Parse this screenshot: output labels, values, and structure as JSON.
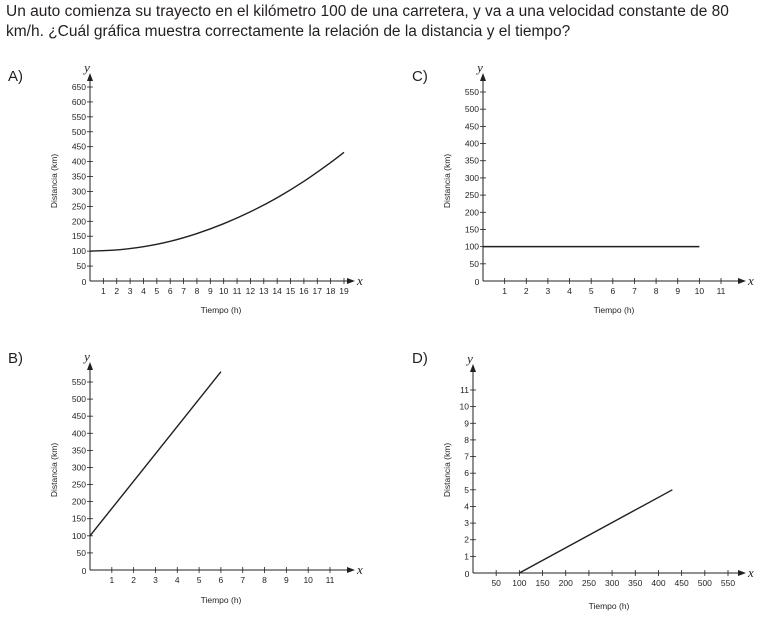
{
  "question": "Un auto comienza su trayecto en el kilómetro 100 de una carretera, y va a una velocidad constante de 80 km/h. ¿Cuál gráfica muestra correctamente la relación de la distancia y el tiempo?",
  "chart_data": [
    {
      "label": "A)",
      "type": "line",
      "xlabel": "Tiempo (h)",
      "ylabel": "Distancia (km)",
      "x_var": "x",
      "y_var": "y",
      "origin_label": "0",
      "xlim": [
        0,
        19
      ],
      "ylim": [
        0,
        650
      ],
      "x_ticks": [
        1,
        2,
        3,
        4,
        5,
        6,
        7,
        8,
        9,
        10,
        11,
        12,
        13,
        14,
        15,
        16,
        17,
        18,
        19
      ],
      "y_ticks": [
        50,
        100,
        150,
        200,
        250,
        300,
        350,
        400,
        450,
        500,
        550,
        600,
        650
      ],
      "series": [
        {
          "x": [
            0,
            2,
            4,
            6,
            8,
            10,
            12,
            14,
            16,
            18,
            19
          ],
          "y": [
            100,
            104,
            115,
            133,
            159,
            192,
            232,
            279,
            334,
            397,
            431
          ]
        }
      ]
    },
    {
      "label": "B)",
      "type": "line",
      "xlabel": "Tiempo (h)",
      "ylabel": "Distancia (km)",
      "x_var": "x",
      "y_var": "y",
      "origin_label": "0",
      "xlim": [
        0,
        11
      ],
      "ylim": [
        0,
        550
      ],
      "x_ticks": [
        1,
        2,
        3,
        4,
        5,
        6,
        7,
        8,
        9,
        10,
        11
      ],
      "y_ticks": [
        50,
        100,
        150,
        200,
        250,
        300,
        350,
        400,
        450,
        500,
        550
      ],
      "series": [
        {
          "x": [
            0,
            6
          ],
          "y": [
            100,
            580
          ]
        }
      ]
    },
    {
      "label": "C)",
      "type": "line",
      "xlabel": "Tiempo (h)",
      "ylabel": "Distancia (km)",
      "x_var": "x",
      "y_var": "y",
      "origin_label": "0",
      "xlim": [
        0,
        11
      ],
      "ylim": [
        0,
        550
      ],
      "x_ticks": [
        1,
        2,
        3,
        4,
        5,
        6,
        7,
        8,
        9,
        10,
        11
      ],
      "y_ticks": [
        50,
        100,
        150,
        200,
        250,
        300,
        350,
        400,
        450,
        500,
        550
      ],
      "series": [
        {
          "x": [
            0,
            10
          ],
          "y": [
            100,
            100
          ]
        }
      ]
    },
    {
      "label": "D)",
      "type": "line",
      "xlabel": "Tiempo (h)",
      "ylabel": "Distancia (km)",
      "x_var": "x",
      "y_var": "y",
      "origin_label": "0",
      "xlim": [
        0,
        550
      ],
      "ylim": [
        0,
        11
      ],
      "x_ticks": [
        50,
        100,
        150,
        200,
        250,
        300,
        350,
        400,
        450,
        500,
        550
      ],
      "y_ticks": [
        1,
        2,
        3,
        4,
        5,
        6,
        7,
        8,
        9,
        10,
        11
      ],
      "series": [
        {
          "x": [
            100,
            430
          ],
          "y": [
            0,
            5
          ]
        }
      ]
    }
  ]
}
